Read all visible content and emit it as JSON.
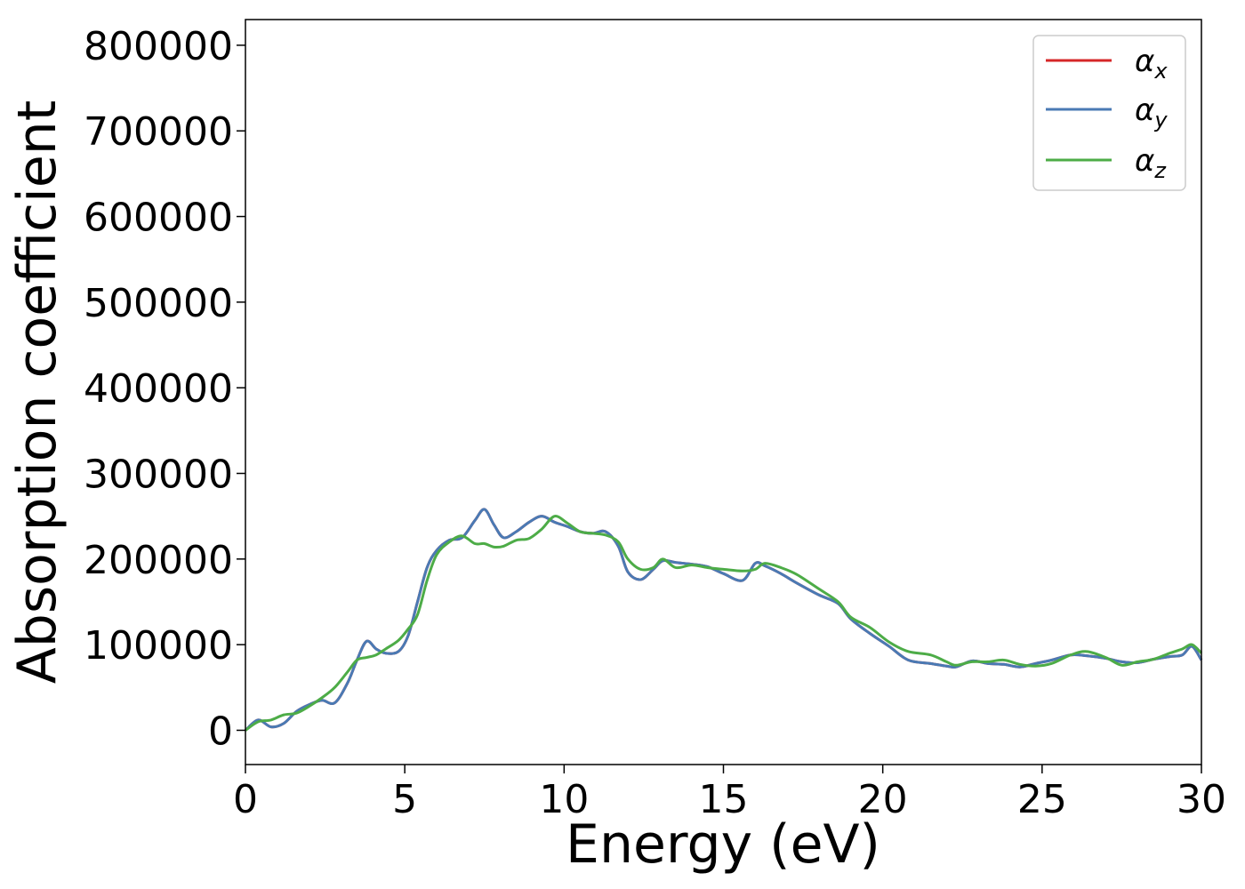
{
  "chart_data": {
    "type": "line",
    "title": "",
    "xlabel": "Energy (eV)",
    "ylabel": "Absorption coefficient",
    "xlim": [
      0,
      30
    ],
    "ylim": [
      -40000,
      830000
    ],
    "xticks": [
      0,
      5,
      10,
      15,
      20,
      25,
      30
    ],
    "yticks": [
      0,
      100000,
      200000,
      300000,
      400000,
      500000,
      600000,
      700000,
      800000
    ],
    "grid": false,
    "legend_position": "top-right",
    "series": [
      {
        "name": "α_x",
        "symbol": "α",
        "subscript": "x",
        "color": "#d62728",
        "x": [
          0,
          0.4,
          0.8,
          1.2,
          1.6,
          2,
          2.4,
          2.8,
          3.2,
          3.5,
          3.8,
          4.1,
          4.4,
          4.8,
          5.1,
          5.4,
          5.7,
          6,
          6.4,
          6.8,
          7.2,
          7.5,
          7.8,
          8.1,
          8.5,
          8.9,
          9.3,
          9.7,
          10.1,
          10.5,
          10.9,
          11.3,
          11.7,
          12,
          12.4,
          12.8,
          13.1,
          13.5,
          14,
          14.5,
          15,
          15.6,
          16,
          16.3,
          16.8,
          17.3,
          18,
          18.6,
          19,
          19.6,
          20.2,
          20.8,
          21.5,
          22,
          22.3,
          22.8,
          23.3,
          23.8,
          24.3,
          24.8,
          25.3,
          25.9,
          26.4,
          27,
          27.5,
          28,
          28.5,
          29,
          29.4,
          29.7,
          30
        ],
        "values": [
          0,
          12000,
          4000,
          8000,
          22000,
          30000,
          35000,
          32000,
          55000,
          82000,
          104000,
          95000,
          90000,
          92000,
          110000,
          150000,
          190000,
          210000,
          222000,
          225000,
          245000,
          258000,
          240000,
          225000,
          232000,
          243000,
          250000,
          243000,
          238000,
          232000,
          230000,
          232000,
          215000,
          185000,
          176000,
          188000,
          198000,
          196000,
          194000,
          191000,
          183000,
          175000,
          195000,
          192000,
          183000,
          172000,
          158000,
          148000,
          130000,
          113000,
          98000,
          82000,
          78000,
          75000,
          74000,
          81000,
          78000,
          77000,
          74000,
          78000,
          82000,
          88000,
          87000,
          84000,
          80000,
          79000,
          83000,
          86000,
          88000,
          98000,
          82000
        ]
      },
      {
        "name": "α_y",
        "symbol": "α",
        "subscript": "y",
        "color": "#4a7ab4",
        "x": [
          0,
          0.4,
          0.8,
          1.2,
          1.6,
          2,
          2.4,
          2.8,
          3.2,
          3.5,
          3.8,
          4.1,
          4.4,
          4.8,
          5.1,
          5.4,
          5.7,
          6,
          6.4,
          6.8,
          7.2,
          7.5,
          7.8,
          8.1,
          8.5,
          8.9,
          9.3,
          9.7,
          10.1,
          10.5,
          10.9,
          11.3,
          11.7,
          12,
          12.4,
          12.8,
          13.1,
          13.5,
          14,
          14.5,
          15,
          15.6,
          16,
          16.3,
          16.8,
          17.3,
          18,
          18.6,
          19,
          19.6,
          20.2,
          20.8,
          21.5,
          22,
          22.3,
          22.8,
          23.3,
          23.8,
          24.3,
          24.8,
          25.3,
          25.9,
          26.4,
          27,
          27.5,
          28,
          28.5,
          29,
          29.4,
          29.7,
          30
        ],
        "values": [
          0,
          12000,
          4000,
          8000,
          22000,
          30000,
          35000,
          32000,
          55000,
          82000,
          104000,
          95000,
          90000,
          92000,
          110000,
          150000,
          190000,
          210000,
          222000,
          225000,
          245000,
          258000,
          240000,
          225000,
          232000,
          243000,
          250000,
          243000,
          238000,
          232000,
          230000,
          232000,
          215000,
          185000,
          176000,
          188000,
          198000,
          196000,
          194000,
          191000,
          183000,
          175000,
          195000,
          192000,
          183000,
          172000,
          158000,
          148000,
          130000,
          113000,
          98000,
          82000,
          78000,
          75000,
          74000,
          81000,
          78000,
          77000,
          74000,
          78000,
          82000,
          88000,
          87000,
          84000,
          80000,
          79000,
          83000,
          86000,
          88000,
          98000,
          82000
        ]
      },
      {
        "name": "α_z",
        "symbol": "α",
        "subscript": "z",
        "color": "#4dac47",
        "x": [
          0,
          0.4,
          0.8,
          1.2,
          1.6,
          2,
          2.4,
          2.8,
          3.2,
          3.5,
          3.8,
          4.1,
          4.4,
          4.8,
          5.1,
          5.4,
          5.7,
          6,
          6.4,
          6.8,
          7.2,
          7.5,
          7.8,
          8.1,
          8.5,
          8.9,
          9.3,
          9.7,
          10.1,
          10.5,
          10.9,
          11.3,
          11.7,
          12,
          12.4,
          12.8,
          13.1,
          13.5,
          14,
          14.5,
          15,
          15.6,
          16,
          16.3,
          16.8,
          17.3,
          18,
          18.6,
          19,
          19.6,
          20.2,
          20.8,
          21.5,
          22,
          22.3,
          22.8,
          23.3,
          23.8,
          24.3,
          24.8,
          25.3,
          25.9,
          26.4,
          27,
          27.5,
          28,
          28.5,
          29,
          29.4,
          29.7,
          30
        ],
        "values": [
          0,
          10000,
          12000,
          18000,
          20000,
          28000,
          38000,
          50000,
          68000,
          82000,
          85000,
          88000,
          95000,
          105000,
          118000,
          135000,
          175000,
          205000,
          220000,
          227000,
          218000,
          218000,
          214000,
          215000,
          222000,
          224000,
          235000,
          250000,
          242000,
          232000,
          230000,
          228000,
          220000,
          200000,
          188000,
          190000,
          200000,
          190000,
          193000,
          190000,
          188000,
          186000,
          188000,
          195000,
          190000,
          182000,
          165000,
          150000,
          132000,
          120000,
          103000,
          92000,
          88000,
          80000,
          76000,
          80000,
          80000,
          82000,
          77000,
          75000,
          78000,
          88000,
          92000,
          85000,
          76000,
          80000,
          83000,
          90000,
          95000,
          100000,
          90000
        ]
      }
    ]
  }
}
